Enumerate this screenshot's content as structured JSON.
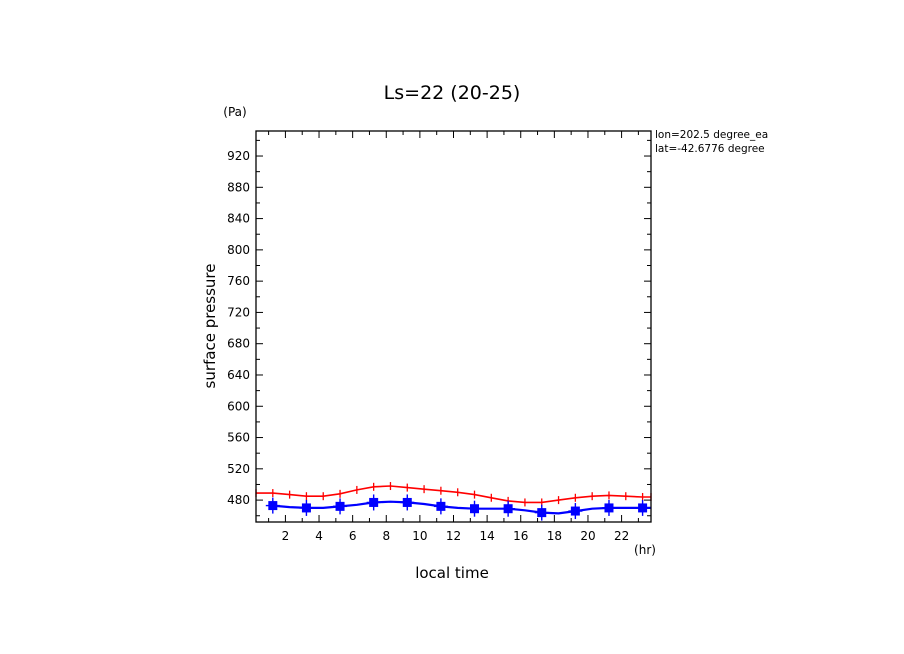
{
  "chart_data": {
    "type": "line",
    "title": "Ls=22 (20-25)",
    "xlabel": "local time",
    "ylabel": "surface pressure",
    "x_unit": "(hr)",
    "y_unit": "(Pa)",
    "annotations": [
      "lon=202.5 degree_ea",
      "lat=-42.6776 degree"
    ],
    "xlim": [
      0.25,
      23.75
    ],
    "ylim": [
      452,
      952
    ],
    "x_ticks": [
      2,
      4,
      6,
      8,
      10,
      12,
      14,
      16,
      18,
      20,
      22
    ],
    "y_ticks": [
      480,
      520,
      560,
      600,
      640,
      680,
      720,
      760,
      800,
      840,
      880,
      920
    ],
    "grid": false,
    "series": [
      {
        "color": "#ff0000",
        "style": "line-with-scatter",
        "x": [
          0.25,
          1.25,
          2.25,
          3.25,
          4.25,
          5.25,
          6.25,
          7.25,
          8.25,
          9.25,
          10.25,
          11.25,
          12.25,
          13.25,
          14.25,
          15.25,
          16.25,
          17.25,
          18.25,
          19.25,
          20.25,
          21.25,
          22.25,
          23.25,
          23.75
        ],
        "y": [
          489,
          489,
          487,
          485,
          485,
          488,
          493,
          497,
          498,
          496,
          494,
          492,
          490,
          487,
          483,
          479,
          477,
          477,
          480,
          483,
          485,
          486,
          485,
          484,
          484
        ]
      },
      {
        "color": "#0000ff",
        "style": "line-with-scatter",
        "x": [
          1.25,
          2.25,
          3.25,
          4.25,
          5.25,
          6.25,
          7.25,
          8.25,
          9.25,
          10.25,
          11.25,
          12.25,
          13.25,
          14.25,
          15.25,
          16.25,
          17.25,
          18.25,
          19.25,
          20.25,
          21.25,
          22.25,
          23.25,
          23.75
        ],
        "y": [
          473,
          471,
          470,
          470,
          472,
          474,
          477,
          478,
          477,
          475,
          472,
          470,
          469,
          469,
          469,
          467,
          464,
          463,
          466,
          469,
          470,
          470,
          470,
          470
        ]
      }
    ]
  }
}
